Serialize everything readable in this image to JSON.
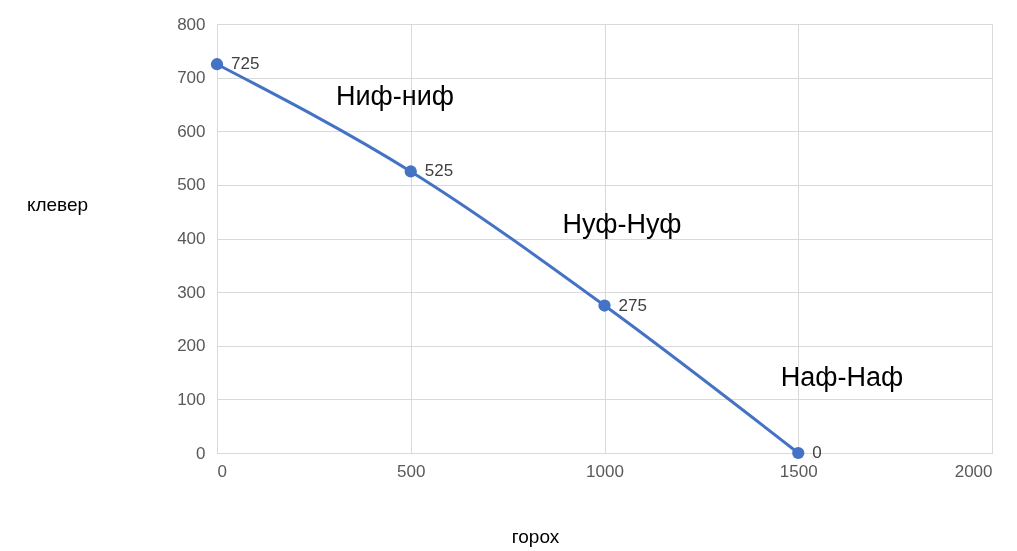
{
  "chart_data": {
    "type": "line",
    "xlabel": "горох",
    "ylabel": "клевер",
    "x": [
      0,
      500,
      1000,
      1500
    ],
    "series": [
      {
        "color": "#4472c4",
        "values": [
          725,
          525,
          275,
          0
        ]
      }
    ],
    "xlim": [
      0,
      2000
    ],
    "xticks": [
      0,
      500,
      1000,
      1500,
      2000
    ],
    "ylim": [
      0,
      800
    ],
    "yticks": [
      0,
      100,
      200,
      300,
      400,
      500,
      600,
      700,
      800
    ],
    "grid": true,
    "marker": "circle",
    "line_style": "solid",
    "data_labels": true,
    "annotations": [
      "Ниф-ниф",
      "Нуф-Нуф",
      "Наф-Наф"
    ]
  }
}
